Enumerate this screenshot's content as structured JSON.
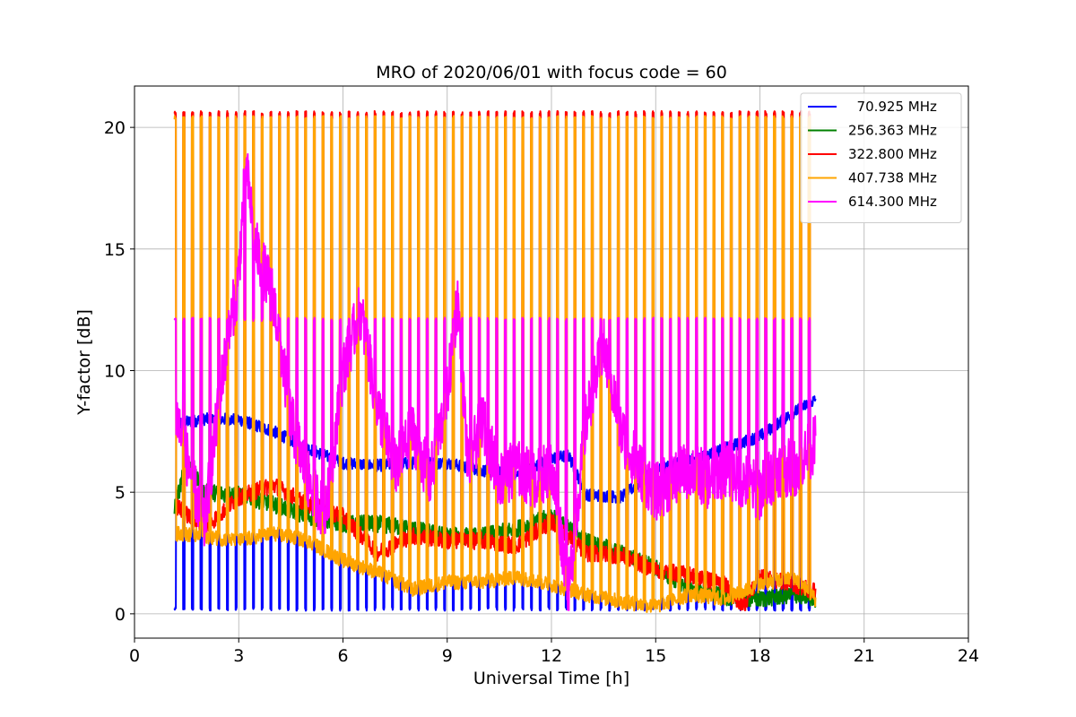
{
  "chart_data": {
    "type": "line",
    "title": "MRO of 2020/06/01 with focus code = 60",
    "xlabel": "Universal Time [h]",
    "ylabel": "Y-factor [dB]",
    "xlim": [
      0,
      24
    ],
    "ylim": [
      -1,
      21.7
    ],
    "xticks": [
      0,
      3,
      6,
      9,
      12,
      15,
      18,
      21,
      24
    ],
    "yticks": [
      0,
      5,
      10,
      15,
      20
    ],
    "grid": true,
    "legend_position": "top-right",
    "time_range": [
      1.15,
      19.6
    ],
    "calibration_pulses": {
      "period_h": 0.25,
      "width_h": 0.045
    },
    "series": [
      {
        "name": "  70.925 MHz",
        "color": "#0000ff",
        "x": [
          1.15,
          2,
          3,
          4,
          5,
          6,
          7,
          8,
          9,
          10,
          11,
          12,
          12.5,
          13,
          14,
          15,
          16,
          17,
          18,
          19,
          19.6
        ],
        "y": [
          7.8,
          8.0,
          8.0,
          7.5,
          6.8,
          6.2,
          6.1,
          6.2,
          6.2,
          5.9,
          5.7,
          6.4,
          6.5,
          4.9,
          4.8,
          5.9,
          6.3,
          6.8,
          7.3,
          8.3,
          8.8
        ],
        "pulse_level": 0.2
      },
      {
        "name": "256.363 MHz",
        "color": "#008000",
        "x": [
          1.15,
          1.5,
          2,
          3,
          4,
          5,
          6,
          7,
          8,
          9,
          10,
          11,
          12,
          13,
          14,
          15,
          16,
          17,
          18,
          19,
          19.6
        ],
        "y": [
          4.3,
          6.3,
          5.0,
          4.9,
          4.5,
          4.0,
          3.7,
          3.7,
          3.5,
          3.2,
          3.2,
          3.5,
          4.0,
          3.0,
          2.5,
          1.9,
          1.0,
          0.7,
          0.6,
          0.8,
          0.6
        ]
      },
      {
        "name": "322.800 MHz",
        "color": "#ff0000",
        "x": [
          1.15,
          2,
          3,
          4,
          5,
          6,
          7,
          8,
          9,
          10,
          11,
          12,
          13,
          14,
          15,
          16,
          17,
          17.5,
          18,
          19,
          19.6
        ],
        "y": [
          4.5,
          3.5,
          4.8,
          5.3,
          4.5,
          4.0,
          2.5,
          3.2,
          3.0,
          3.0,
          2.8,
          3.8,
          2.5,
          2.4,
          1.8,
          1.6,
          1.2,
          0.3,
          1.5,
          1.2,
          0.9
        ],
        "pulse_level": 20.6
      },
      {
        "name": "407.738 MHz",
        "color": "#ffa500",
        "x": [
          1.15,
          2,
          3,
          4,
          5,
          6,
          7,
          8,
          9,
          10,
          11,
          12,
          13,
          14,
          15,
          16,
          17,
          18,
          19,
          19.6
        ],
        "y": [
          3.3,
          3.2,
          3.0,
          3.3,
          3.0,
          2.2,
          1.7,
          1.0,
          1.3,
          1.3,
          1.5,
          1.2,
          0.8,
          0.5,
          0.3,
          0.8,
          0.6,
          1.2,
          1.5,
          0.6
        ],
        "pulse_level": 20.4
      },
      {
        "name": "614.300 MHz",
        "color": "#ff00ff",
        "x": [
          1.15,
          1.5,
          2,
          2.5,
          3,
          3.2,
          3.5,
          4,
          4.5,
          5,
          5.5,
          6,
          6.5,
          7,
          7.5,
          8,
          8.5,
          9,
          9.3,
          9.6,
          10,
          10.5,
          11,
          11.5,
          12,
          12.5,
          13,
          13.5,
          14,
          14.5,
          15,
          15.5,
          16,
          16.5,
          17,
          17.5,
          18,
          18.5,
          19,
          19.6
        ],
        "y": [
          8.5,
          6.5,
          3.5,
          9.5,
          14.0,
          18.5,
          15.0,
          13.0,
          8.0,
          5.5,
          4.0,
          10.0,
          12.5,
          8.5,
          6.0,
          7.5,
          5.5,
          9.0,
          13.0,
          6.0,
          8.0,
          5.5,
          6.0,
          5.5,
          6.0,
          1.0,
          8.0,
          11.0,
          7.5,
          6.0,
          5.0,
          5.5,
          6.0,
          5.5,
          6.0,
          5.5,
          5.0,
          6.0,
          6.0,
          7.0
        ],
        "pulse_level": 12.1
      }
    ]
  }
}
